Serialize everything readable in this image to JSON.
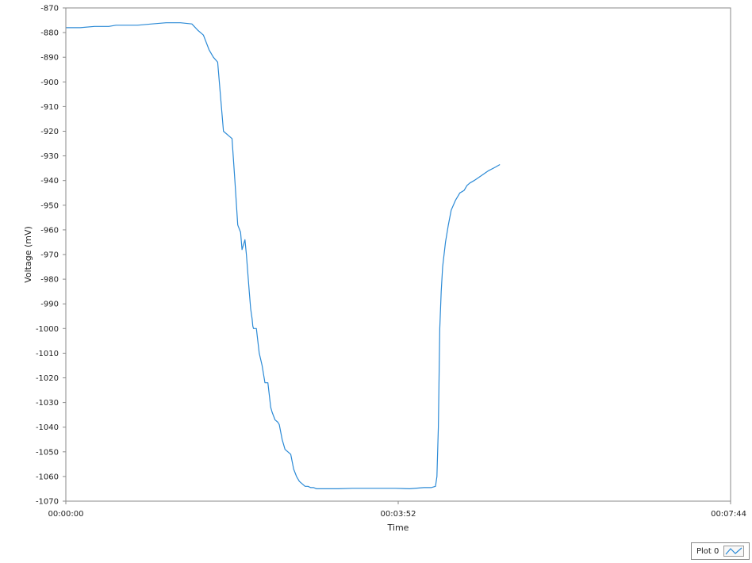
{
  "chart_data": {
    "type": "line",
    "title": "",
    "xlabel": "Time",
    "ylabel": "Voltage (mV)",
    "ylim": [
      -1070,
      -870
    ],
    "yticks": [
      -870,
      -880,
      -890,
      -900,
      -910,
      -920,
      -930,
      -940,
      -950,
      -960,
      -970,
      -980,
      -990,
      -1000,
      -1010,
      -1020,
      -1030,
      -1040,
      -1050,
      -1060,
      -1070
    ],
    "xlim_seconds": [
      0,
      464
    ],
    "xticks": [
      {
        "seconds": 0,
        "label": "00:00:00"
      },
      {
        "seconds": 232,
        "label": "00:03:52"
      },
      {
        "seconds": 464,
        "label": "00:07:44"
      }
    ],
    "grid": false,
    "legend_position": "bottom-right",
    "series": [
      {
        "name": "Plot 0",
        "color": "#2b8ad6",
        "x_seconds": [
          0,
          10,
          20,
          30,
          35,
          40,
          50,
          60,
          70,
          80,
          88,
          92,
          96,
          100,
          103,
          106,
          110,
          114,
          116,
          118,
          120,
          122,
          123,
          125,
          126,
          128,
          129,
          130,
          130.5,
          131,
          133,
          135,
          137,
          139,
          141,
          143,
          144,
          146,
          148,
          149,
          151,
          153,
          155,
          157,
          159,
          161,
          163,
          165,
          167,
          169,
          171,
          173,
          175,
          177,
          180,
          185,
          190,
          200,
          210,
          220,
          230,
          240,
          250,
          255,
          258,
          259,
          260,
          260.5,
          261,
          262,
          263,
          265,
          267,
          269,
          272,
          275,
          278,
          280,
          282,
          285,
          290,
          295,
          300,
          303
        ],
        "y": [
          -878,
          -878,
          -877.5,
          -877.5,
          -877,
          -877,
          -877,
          -876.5,
          -876,
          -876,
          -876.5,
          -879,
          -881,
          -887,
          -890,
          -892,
          -920,
          -922,
          -923,
          -940,
          -958,
          -961,
          -968,
          -964,
          -970,
          -985,
          -992,
          -996,
          -999,
          -1000,
          -1000,
          -1010,
          -1015,
          -1022,
          -1022,
          -1032,
          -1034,
          -1037,
          -1038,
          -1039,
          -1045,
          -1049,
          -1050,
          -1051,
          -1057,
          -1060,
          -1062,
          -1063,
          -1064,
          -1064,
          -1064.5,
          -1064.5,
          -1065,
          -1065,
          -1065,
          -1065,
          -1065,
          -1064.8,
          -1064.8,
          -1064.8,
          -1064.8,
          -1065,
          -1064.5,
          -1064.5,
          -1064,
          -1060,
          -1040,
          -1020,
          -1000,
          -985,
          -975,
          -965,
          -958,
          -952,
          -948,
          -945,
          -944,
          -942,
          -941,
          -940,
          -938,
          -936,
          -934.5,
          -933.5
        ]
      }
    ]
  },
  "legend": {
    "label": "Plot 0",
    "icon": "line-plot-swatch-icon"
  }
}
